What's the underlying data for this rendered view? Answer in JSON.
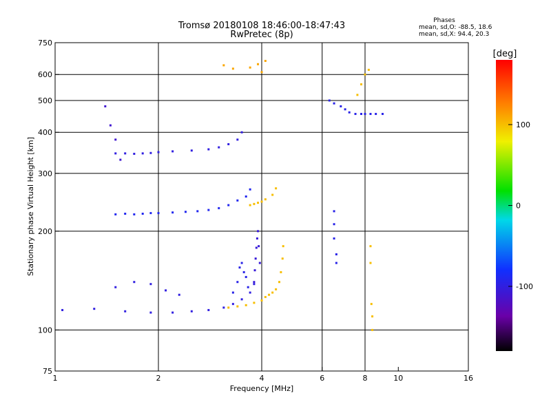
{
  "chart_data": {
    "type": "scatter",
    "title": "Tromsø 20180108 18:46:00-18:47:43",
    "subtitle": "RwPretec (8p)",
    "stats": {
      "heading": "Phases",
      "line1": "mean, sd,O: -88.5, 18.6",
      "line2": "mean, sd,X:  94.4, 20.3"
    },
    "xlabel": "Frequency [MHz]",
    "ylabel": "Stationary phase Virtual Height [km]",
    "x_scale": "log",
    "y_scale": "log",
    "xlim": [
      1,
      16
    ],
    "ylim": [
      75,
      750
    ],
    "x_ticks": [
      1,
      2,
      4,
      6,
      8,
      10,
      16
    ],
    "y_ticks": [
      75,
      100,
      200,
      300,
      400,
      500,
      600,
      750
    ],
    "x_gridlines": [
      2,
      4,
      6,
      8
    ],
    "y_gridlines": [
      100,
      200,
      300,
      400,
      500,
      600
    ],
    "grid": true,
    "colorbar": {
      "label": "[deg]",
      "range": [
        -180,
        180
      ],
      "ticks": [
        100,
        0,
        -100
      ]
    },
    "traces": [
      {
        "x": [
          1.05,
          1.3,
          1.6,
          1.9,
          2.2,
          2.5,
          2.8,
          3.1,
          3.3,
          3.5,
          3.7,
          3.8
        ],
        "y": [
          115,
          116,
          114,
          113,
          113,
          114,
          115,
          117,
          120,
          124,
          130,
          138
        ],
        "phase": -100
      },
      {
        "x": [
          3.8,
          3.82,
          3.84,
          3.86,
          3.88,
          3.9,
          3.92,
          3.95
        ],
        "y": [
          140,
          152,
          165,
          178,
          190,
          200,
          180,
          160
        ],
        "phase": -105
      },
      {
        "x": [
          3.2,
          3.4,
          3.6,
          3.8,
          4.0,
          4.1,
          4.2,
          4.3,
          4.4,
          4.5,
          4.55,
          4.6,
          4.62
        ],
        "y": [
          117,
          118,
          119,
          121,
          123,
          126,
          128,
          130,
          133,
          140,
          150,
          165,
          180
        ],
        "phase": 100
      },
      {
        "x": [
          3.3,
          3.4,
          3.45,
          3.5,
          3.55,
          3.6,
          3.65
        ],
        "y": [
          130,
          140,
          155,
          160,
          150,
          145,
          135
        ],
        "phase": -95
      },
      {
        "x": [
          1.5,
          1.6,
          1.7,
          1.8,
          1.9,
          2.0,
          2.2,
          2.4,
          2.6,
          2.8,
          3.0,
          3.2,
          3.4,
          3.6,
          3.7
        ],
        "y": [
          225,
          226,
          225,
          226,
          227,
          227,
          228,
          229,
          230,
          232,
          235,
          240,
          248,
          255,
          268
        ],
        "phase": -90
      },
      {
        "x": [
          3.7,
          3.8,
          3.9,
          4.0,
          4.1,
          4.3,
          4.4
        ],
        "y": [
          240,
          242,
          244,
          246,
          250,
          258,
          270
        ],
        "phase": 100
      },
      {
        "x": [
          1.5,
          1.6,
          1.7,
          1.8,
          1.9,
          2.0,
          2.2,
          2.5,
          2.8,
          3.0,
          3.2,
          3.4,
          3.5
        ],
        "y": [
          345,
          345,
          344,
          345,
          346,
          348,
          350,
          352,
          355,
          360,
          368,
          380,
          400
        ],
        "phase": -100
      },
      {
        "x": [
          6.3,
          6.5,
          6.8,
          7.0,
          7.2,
          7.5,
          7.8,
          8.0,
          8.3,
          8.6,
          9.0
        ],
        "y": [
          500,
          490,
          480,
          470,
          460,
          455,
          455,
          455,
          455,
          455,
          455
        ],
        "phase": -95
      },
      {
        "x": [
          7.6,
          7.8,
          8.0,
          8.2
        ],
        "y": [
          520,
          560,
          600,
          620
        ],
        "phase": 100
      },
      {
        "x": [
          3.1,
          3.3,
          3.7,
          3.9,
          4.0,
          4.1
        ],
        "y": [
          640,
          625,
          630,
          645,
          610,
          660
        ],
        "phase": 110
      },
      {
        "x": [
          1.4,
          1.45,
          1.5,
          1.55
        ],
        "y": [
          480,
          420,
          380,
          330
        ],
        "phase": -110
      },
      {
        "x": [
          1.5,
          1.7,
          1.9,
          2.1,
          2.3
        ],
        "y": [
          135,
          140,
          138,
          132,
          128
        ],
        "phase": -100
      },
      {
        "x": [
          6.5,
          6.5,
          6.5,
          6.6,
          6.6
        ],
        "y": [
          230,
          210,
          190,
          170,
          160
        ],
        "phase": -95
      },
      {
        "x": [
          8.3,
          8.3,
          8.35,
          8.4,
          8.4
        ],
        "y": [
          180,
          160,
          120,
          110,
          100
        ],
        "phase": 100
      }
    ]
  }
}
